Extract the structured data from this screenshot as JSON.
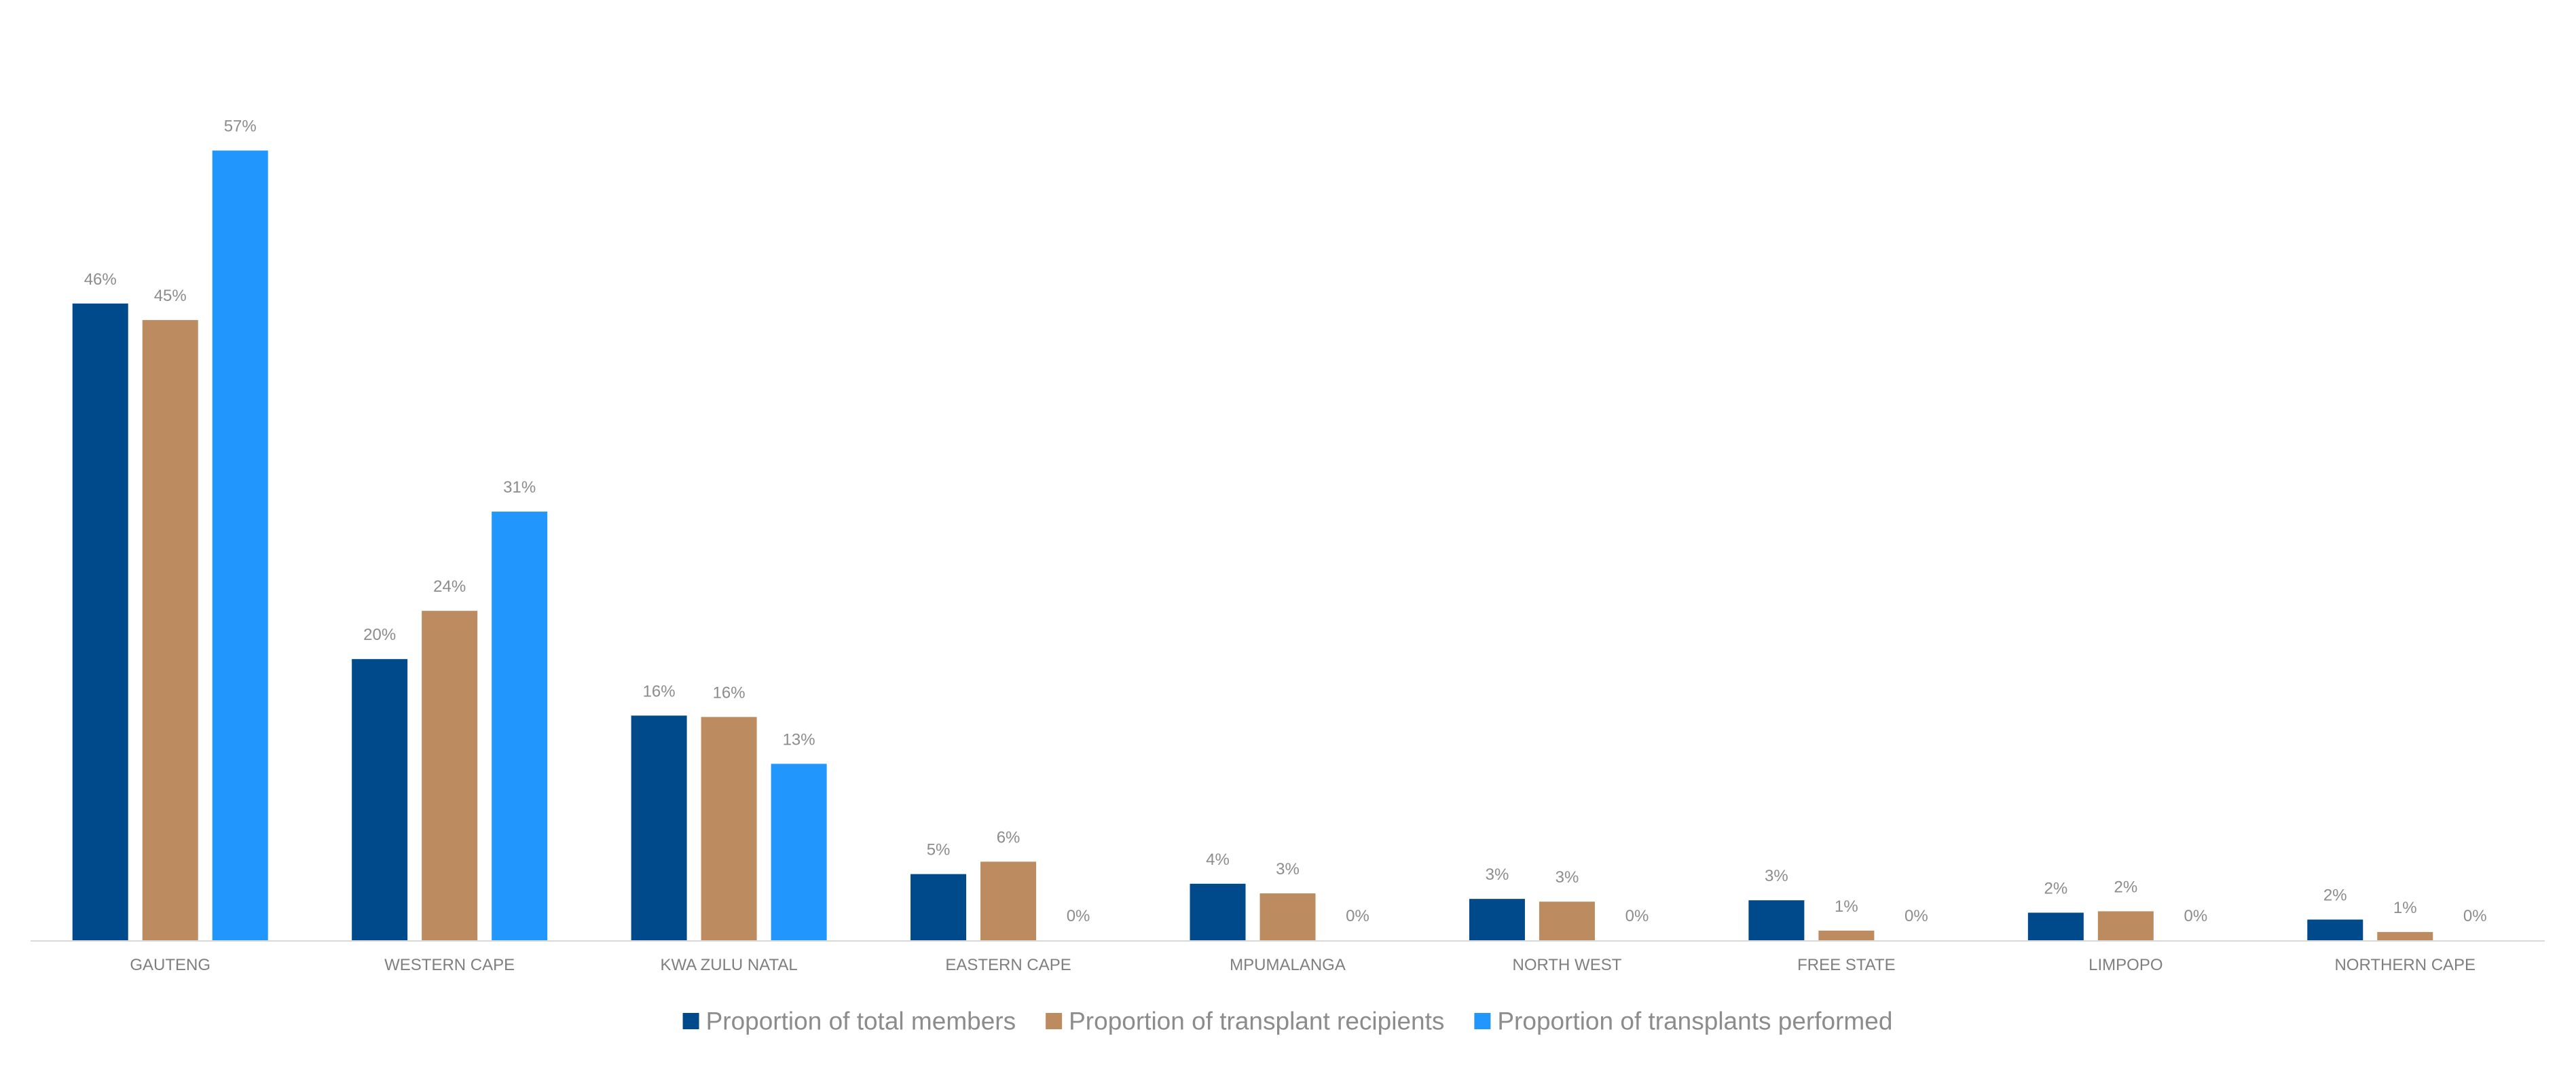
{
  "chart_data": {
    "type": "bar",
    "categories": [
      "GAUTENG",
      "WESTERN CAPE",
      "KWA ZULU NATAL",
      "EASTERN CAPE",
      "MPUMALANGA",
      "NORTH WEST",
      "FREE STATE",
      "LIMPOPO",
      "NORTHERN CAPE"
    ],
    "series": [
      {
        "name": "Proportion of total members",
        "color": "#004a8c",
        "values": [
          46.2,
          20.4,
          16.3,
          4.8,
          4.1,
          3.0,
          2.9,
          2.0,
          1.5
        ],
        "labels": [
          "46%",
          "20%",
          "16%",
          "5%",
          "4%",
          "3%",
          "3%",
          "2%",
          "2%"
        ]
      },
      {
        "name": "Proportion of transplant recipients",
        "color": "#bc8b5f",
        "values": [
          45.0,
          23.9,
          16.2,
          5.7,
          3.4,
          2.8,
          0.7,
          2.1,
          0.6
        ],
        "labels": [
          "45%",
          "24%",
          "16%",
          "6%",
          "3%",
          "3%",
          "1%",
          "2%",
          "1%"
        ]
      },
      {
        "name": "Proportion of transplants performed",
        "color": "#2196fc",
        "values": [
          57.3,
          31.1,
          12.8,
          0,
          0,
          0,
          0,
          0,
          0
        ],
        "labels": [
          "57%",
          "31%",
          "13%",
          "0%",
          "0%",
          "0%",
          "0%",
          "0%",
          "0%"
        ]
      }
    ],
    "ylim": [
      0,
      62.8
    ],
    "grid": false,
    "legend": "bottom",
    "title": "",
    "xlabel": "",
    "ylabel": "",
    "axis_color": "#d9d9d9"
  }
}
